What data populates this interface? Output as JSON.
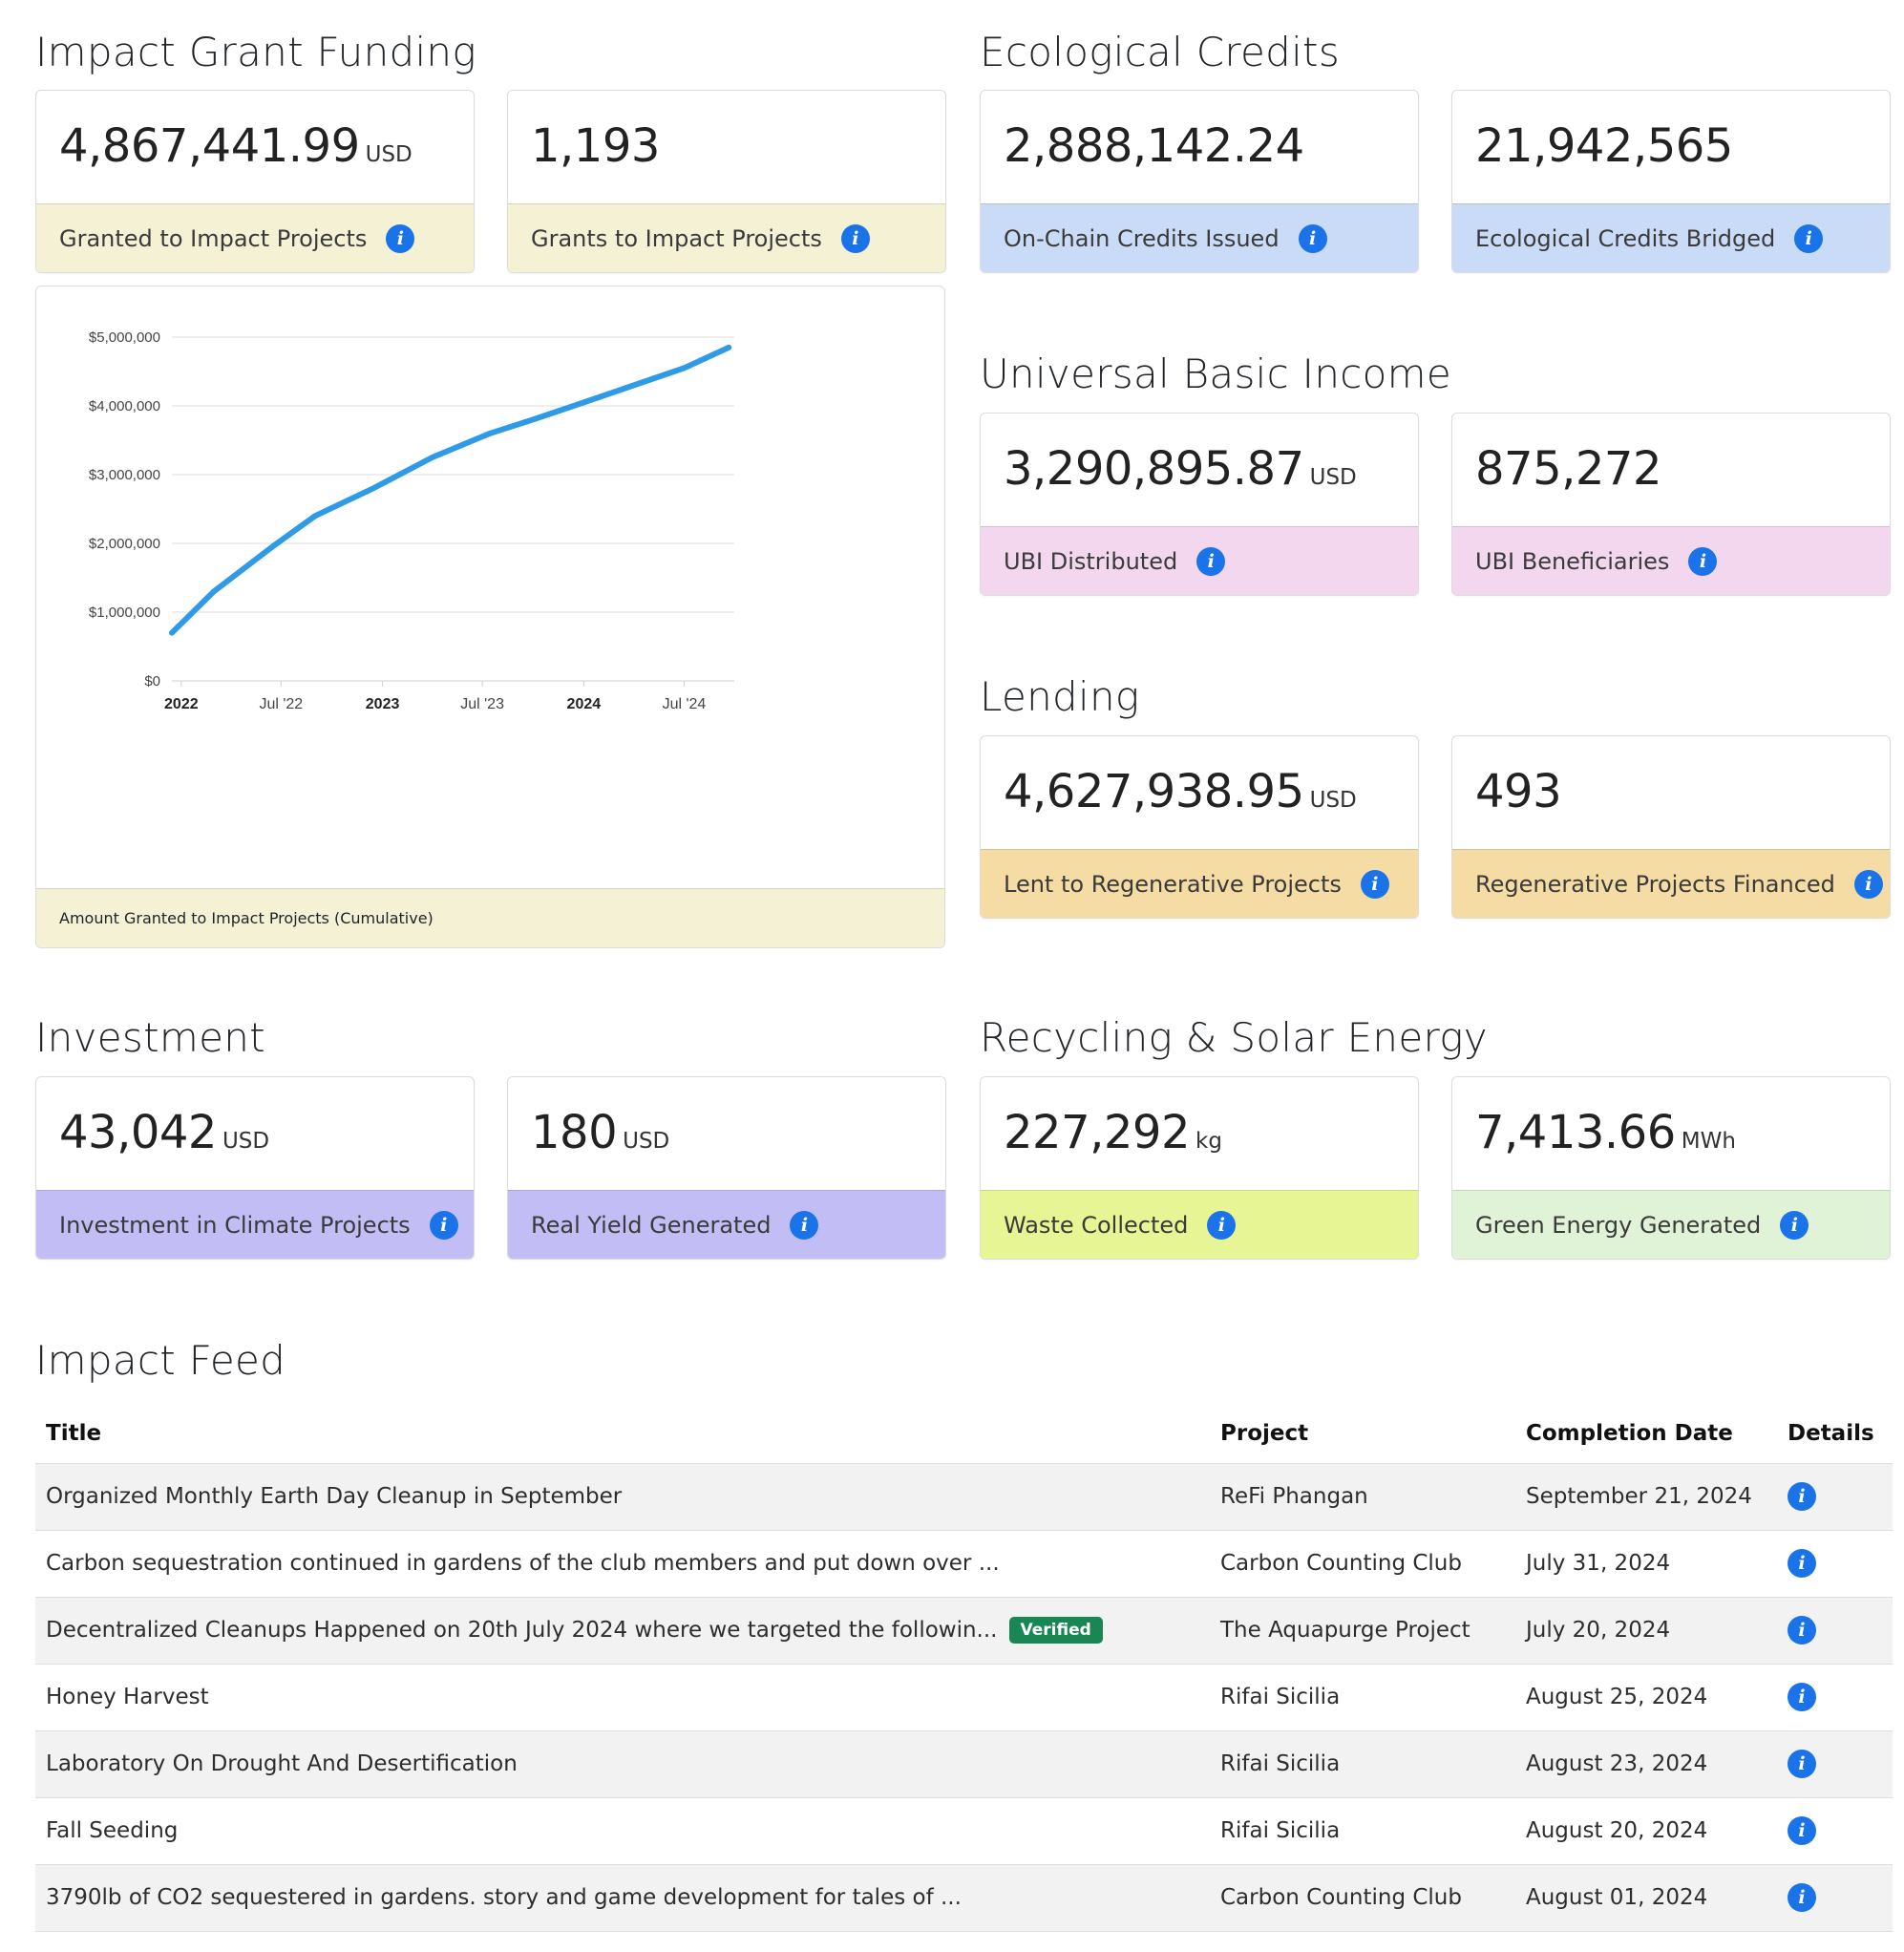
{
  "sections": {
    "impact_grant_funding": {
      "title": "Impact Grant Funding",
      "cards": [
        {
          "value": "4,867,441.99",
          "unit": "USD",
          "label": "Granted to Impact Projects"
        },
        {
          "value": "1,193",
          "unit": "",
          "label": "Grants to Impact Projects"
        }
      ],
      "chart_label": "Amount Granted to Impact Projects (Cumulative)"
    },
    "ecological_credits": {
      "title": "Ecological Credits",
      "cards": [
        {
          "value": "2,888,142.24",
          "unit": "",
          "label": "On-Chain Credits Issued"
        },
        {
          "value": "21,942,565",
          "unit": "",
          "label": "Ecological Credits Bridged"
        }
      ]
    },
    "ubi": {
      "title": "Universal Basic Income",
      "cards": [
        {
          "value": "3,290,895.87",
          "unit": "USD",
          "label": "UBI Distributed"
        },
        {
          "value": "875,272",
          "unit": "",
          "label": "UBI Beneficiaries"
        }
      ]
    },
    "lending": {
      "title": "Lending",
      "cards": [
        {
          "value": "4,627,938.95",
          "unit": "USD",
          "label": "Lent to Regenerative Projects"
        },
        {
          "value": "493",
          "unit": "",
          "label": "Regenerative Projects Financed"
        }
      ]
    },
    "investment": {
      "title": "Investment",
      "cards": [
        {
          "value": "43,042",
          "unit": "USD",
          "label": "Investment in Climate Projects"
        },
        {
          "value": "180",
          "unit": "USD",
          "label": "Real Yield Generated"
        }
      ]
    },
    "recycling": {
      "title": "Recycling & Solar Energy",
      "cards": [
        {
          "value": "227,292",
          "unit": "kg",
          "label": "Waste Collected"
        },
        {
          "value": "7,413.66",
          "unit": "MWh",
          "label": "Green Energy Generated"
        }
      ]
    }
  },
  "colors": {
    "yellow": "#f4f1d5",
    "blue": "#c9dbf6",
    "pink": "#f3d7ef",
    "orange": "#f5dca4",
    "purple": "#c2bdf4",
    "lime": "#e8f594",
    "green": "#e1f3d7",
    "info_icon": "#1a73e8",
    "chart_line": "#2f9be6",
    "verified_badge": "#198754"
  },
  "icons": {
    "info": "info-circle-icon"
  },
  "info_icon_glyph": "i",
  "chart_data": {
    "type": "line",
    "title": "",
    "xlabel": "",
    "ylabel": "",
    "ylim": [
      0,
      5000000
    ],
    "grid": true,
    "y_ticks": [
      "$0",
      "$1,000,000",
      "$2,000,000",
      "$3,000,000",
      "$4,000,000",
      "$5,000,000"
    ],
    "x_ticks": [
      {
        "label": "2022",
        "bold": true,
        "x": "2022-01-01"
      },
      {
        "label": "Jul '22",
        "bold": false,
        "x": "2022-07-01"
      },
      {
        "label": "2023",
        "bold": true,
        "x": "2023-01-01"
      },
      {
        "label": "Jul '23",
        "bold": false,
        "x": "2023-07-01"
      },
      {
        "label": "2024",
        "bold": true,
        "x": "2024-01-01"
      },
      {
        "label": "Jul '24",
        "bold": false,
        "x": "2024-07-01"
      }
    ],
    "xlim": [
      "2021-12-15",
      "2024-09-30"
    ],
    "series": [
      {
        "x": [
          "2021-12-15",
          "2022-03-01",
          "2022-06-15",
          "2022-09-01",
          "2022-12-15",
          "2023-04-01",
          "2023-07-15",
          "2023-10-01",
          "2024-01-01",
          "2024-04-01",
          "2024-07-01",
          "2024-09-20"
        ],
        "y": [
          700000,
          1300000,
          1950000,
          2400000,
          2800000,
          3250000,
          3600000,
          3800000,
          4050000,
          4300000,
          4550000,
          4850000
        ]
      }
    ]
  },
  "feed": {
    "title": "Impact Feed",
    "columns": [
      "Title",
      "Project",
      "Completion Date",
      "Details"
    ],
    "rows": [
      {
        "title": "Organized Monthly Earth Day Cleanup in September",
        "badge": "",
        "project": "ReFi Phangan",
        "date": "September 21, 2024"
      },
      {
        "title": "Carbon sequestration continued in gardens of the club members and put down over ...",
        "badge": "",
        "project": "Carbon Counting Club",
        "date": "July 31, 2024"
      },
      {
        "title": "Decentralized Cleanups Happened on 20th July 2024 where we targeted the followin...",
        "badge": "Verified",
        "project": "The Aquapurge Project",
        "date": "July 20, 2024"
      },
      {
        "title": "Honey Harvest",
        "badge": "",
        "project": "Rifai Sicilia",
        "date": "August 25, 2024"
      },
      {
        "title": "Laboratory On Drought And Desertification",
        "badge": "",
        "project": "Rifai Sicilia",
        "date": "August 23, 2024"
      },
      {
        "title": "Fall Seeding",
        "badge": "",
        "project": "Rifai Sicilia",
        "date": "August 20, 2024"
      },
      {
        "title": "3790lb of CO2 sequestered in gardens. story and game development for tales of ...",
        "badge": "",
        "project": "Carbon Counting Club",
        "date": "August 01, 2024"
      }
    ]
  }
}
